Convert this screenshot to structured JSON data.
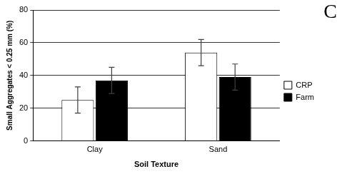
{
  "chart_data": {
    "type": "bar",
    "title": "C",
    "x_label": "Soil Texture",
    "y_label": "Small Aggregates < 0.25 mm (%)",
    "categories": [
      "Clay",
      "Sand"
    ],
    "series": [
      {
        "name": "CRP",
        "color": "#ffffff",
        "values": [
          25,
          54
        ],
        "errors": [
          8,
          8
        ]
      },
      {
        "name": "Farm",
        "color": "#000000",
        "values": [
          37,
          39
        ],
        "errors": [
          8,
          8
        ]
      }
    ],
    "ylim": [
      0,
      80
    ],
    "yticks": [
      0,
      20,
      40,
      60,
      80
    ],
    "grid": true,
    "legend": "right"
  }
}
